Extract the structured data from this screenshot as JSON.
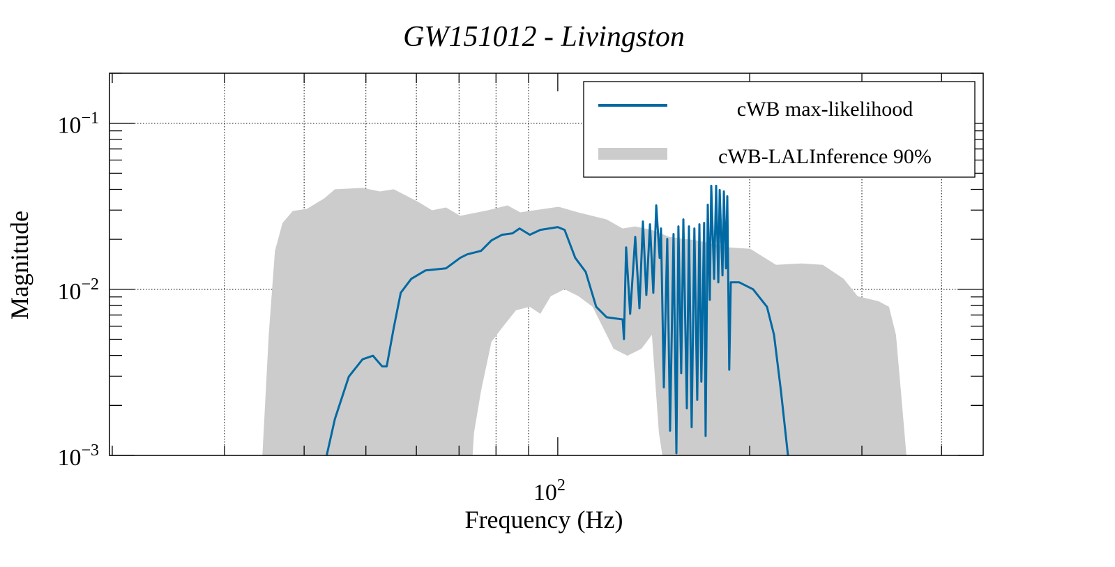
{
  "chart_data": {
    "type": "line",
    "title": "GW151012 - Livingston",
    "xlabel": "Frequency (Hz)",
    "ylabel": "Magnitude",
    "xscale": "log",
    "yscale": "log",
    "xlim": [
      19.8,
      465
    ],
    "ylim": [
      0.001,
      0.2
    ],
    "grid": true,
    "x_gridlines": [
      30,
      40,
      50,
      60,
      70,
      80,
      90,
      200,
      300,
      400
    ],
    "y_gridlines": [
      0.1,
      0.01
    ],
    "x_tick_labels": [
      {
        "value": 100,
        "base": "10",
        "exp": "2"
      }
    ],
    "y_tick_labels": [
      {
        "value": 0.1,
        "base": "10",
        "exp": "−1"
      },
      {
        "value": 0.01,
        "base": "10",
        "exp": "−2"
      },
      {
        "value": 0.001,
        "base": "10",
        "exp": "−3"
      }
    ],
    "legend": {
      "placement": "top-right",
      "entries": [
        {
          "label": "cWB max-likelihood",
          "kind": "line",
          "color": "#0069a3"
        },
        {
          "label": "cWB-LALInference 90%",
          "kind": "band",
          "color": "#cccccc"
        }
      ]
    },
    "series": [
      {
        "name": "cWB-LALInference 90%",
        "kind": "band",
        "color": "#cccccc",
        "upper": [
          [
            34.4,
            0.001
          ],
          [
            35.2,
            0.00532
          ],
          [
            36.0,
            0.01704
          ],
          [
            37.0,
            0.02512
          ],
          [
            38.4,
            0.02962
          ],
          [
            40.4,
            0.0305
          ],
          [
            43.0,
            0.03527
          ],
          [
            44.7,
            0.04001
          ],
          [
            49.4,
            0.04079
          ],
          [
            52.6,
            0.03886
          ],
          [
            55.3,
            0.04001
          ],
          [
            60.4,
            0.0336
          ],
          [
            63.5,
            0.02991
          ],
          [
            66.8,
            0.0311
          ],
          [
            70.3,
            0.02768
          ],
          [
            77.7,
            0.02991
          ],
          [
            83.4,
            0.03201
          ],
          [
            87.3,
            0.02905
          ],
          [
            100.3,
            0.03139
          ],
          [
            107.6,
            0.02905
          ],
          [
            119.3,
            0.02637
          ],
          [
            126.4,
            0.02324
          ],
          [
            132.3,
            0.02393
          ],
          [
            140.5,
            0.0228
          ],
          [
            149.6,
            0.0207
          ],
          [
            165.5,
            0.01971
          ],
          [
            185.4,
            0.01789
          ],
          [
            200.4,
            0.01755
          ],
          [
            220.0,
            0.01404
          ],
          [
            241.5,
            0.01432
          ],
          [
            260.5,
            0.01404
          ],
          [
            280.9,
            0.01157
          ],
          [
            295.4,
            0.00908
          ],
          [
            318.6,
            0.00848
          ],
          [
            330.9,
            0.00785
          ],
          [
            339.3,
            0.00532
          ],
          [
            345.3,
            0.00245
          ],
          [
            352.4,
            0.001
          ]
        ],
        "lower": [
          [
            34.4,
            0.001
          ],
          [
            73.5,
            0.001
          ],
          [
            73.9,
            0.00137
          ],
          [
            75.8,
            0.00245
          ],
          [
            78.7,
            0.00483
          ],
          [
            81.8,
            0.00587
          ],
          [
            86.0,
            0.00748
          ],
          [
            90.4,
            0.00785
          ],
          [
            93.9,
            0.00712
          ],
          [
            97.5,
            0.00908
          ],
          [
            102.5,
            0.01
          ],
          [
            107.8,
            0.00908
          ],
          [
            113.4,
            0.00785
          ],
          [
            119.3,
            0.00532
          ],
          [
            122.3,
            0.00439
          ],
          [
            128.6,
            0.00398
          ],
          [
            135.3,
            0.00439
          ],
          [
            140.5,
            0.00532
          ],
          [
            144.1,
            0.00137
          ],
          [
            145.9,
            0.001
          ],
          [
            352.4,
            0.001
          ]
        ]
      },
      {
        "name": "cWB max-likelihood",
        "kind": "line",
        "color": "#0069a3",
        "points": [
          [
            43.4,
            0.001
          ],
          [
            44.7,
            0.00166
          ],
          [
            47.0,
            0.00298
          ],
          [
            49.4,
            0.00379
          ],
          [
            51.3,
            0.00398
          ],
          [
            53.0,
            0.00344
          ],
          [
            53.9,
            0.00344
          ],
          [
            55.3,
            0.00587
          ],
          [
            56.7,
            0.00953
          ],
          [
            58.9,
            0.01157
          ],
          [
            62.0,
            0.01299
          ],
          [
            66.8,
            0.01338
          ],
          [
            70.3,
            0.01547
          ],
          [
            72.1,
            0.01624
          ],
          [
            75.8,
            0.01704
          ],
          [
            78.7,
            0.01971
          ],
          [
            81.8,
            0.02131
          ],
          [
            84.9,
            0.02172
          ],
          [
            87.1,
            0.02324
          ],
          [
            90.4,
            0.02131
          ],
          [
            93.9,
            0.0228
          ],
          [
            100,
            0.0237
          ],
          [
            102.5,
            0.0228
          ],
          [
            106.5,
            0.01547
          ],
          [
            110.6,
            0.01274
          ],
          [
            114.9,
            0.00785
          ],
          [
            119.3,
            0.00679
          ],
          [
            126.4,
            0.00659
          ],
          [
            127.0,
            0.00502
          ],
          [
            128.0,
            0.01789
          ],
          [
            129.9,
            0.00712
          ],
          [
            132.3,
            0.0207
          ],
          [
            134.3,
            0.0077
          ],
          [
            136.0,
            0.02561
          ],
          [
            137.7,
            0.00925
          ],
          [
            139.5,
            0.02464
          ],
          [
            141.2,
            0.00953
          ],
          [
            142.7,
            0.03201
          ],
          [
            144.5,
            0.01547
          ],
          [
            145.2,
            0.02324
          ],
          [
            146.7,
            0.00257
          ],
          [
            148.5,
            0.0201
          ],
          [
            150.0,
            0.00141
          ],
          [
            151.9,
            0.02151
          ],
          [
            153.5,
            0.00103
          ],
          [
            154.6,
            0.02393
          ],
          [
            156.2,
            0.00313
          ],
          [
            157.4,
            0.02637
          ],
          [
            159.4,
            0.00192
          ],
          [
            160.6,
            0.02393
          ],
          [
            162.2,
            0.00148
          ],
          [
            163.8,
            0.02324
          ],
          [
            165.5,
            0.00216
          ],
          [
            166.8,
            0.02464
          ],
          [
            168.0,
            0.00278
          ],
          [
            169.7,
            0.02512
          ],
          [
            170.6,
            0.00131
          ],
          [
            171.9,
            0.03232
          ],
          [
            173.2,
            0.00865
          ],
          [
            174.1,
            0.042
          ],
          [
            175.9,
            0.01157
          ],
          [
            177.2,
            0.042
          ],
          [
            178.6,
            0.01102
          ],
          [
            179.5,
            0.03962
          ],
          [
            181.3,
            0.01214
          ],
          [
            182.2,
            0.03886
          ],
          [
            183.6,
            0.01338
          ],
          [
            184.5,
            0.03631
          ],
          [
            185.8,
            0.00328
          ],
          [
            186.8,
            0.01102
          ],
          [
            192.6,
            0.01102
          ],
          [
            202.5,
            0.01
          ],
          [
            212.9,
            0.00785
          ],
          [
            218.4,
            0.00532
          ],
          [
            223.9,
            0.00245
          ],
          [
            229.7,
            0.001
          ]
        ]
      }
    ]
  }
}
